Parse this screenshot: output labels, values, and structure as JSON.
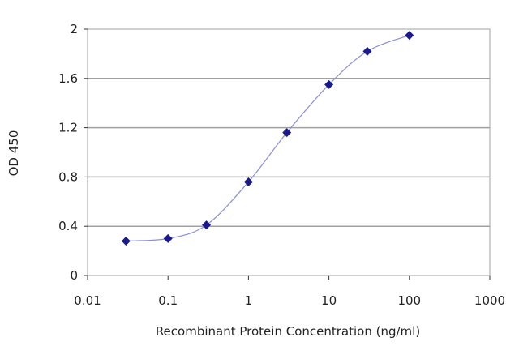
{
  "chart_data": {
    "type": "line",
    "xlabel": "Recombinant Protein Concentration (ng/ml)",
    "ylabel": "OD 450",
    "x_scale": "log",
    "xlim": [
      0.01,
      1000
    ],
    "ylim": [
      0,
      2
    ],
    "x_ticks": [
      "0.01",
      "0.1",
      "1",
      "10",
      "100",
      "1000"
    ],
    "y_ticks": [
      "0",
      "0.4",
      "0.8",
      "1.2",
      "1.6",
      "2"
    ],
    "grid": "horizontal",
    "series": [
      {
        "x": [
          0.03,
          0.1,
          0.3,
          1,
          3,
          10,
          30,
          100
        ],
        "y": [
          0.28,
          0.3,
          0.41,
          0.76,
          1.16,
          1.55,
          1.82,
          1.95
        ]
      }
    ],
    "colors": {
      "line": "#8a8fd8",
      "marker": "#1a1a8c",
      "grid": "#a0a0a0",
      "frame": "#a0a0a0"
    }
  }
}
